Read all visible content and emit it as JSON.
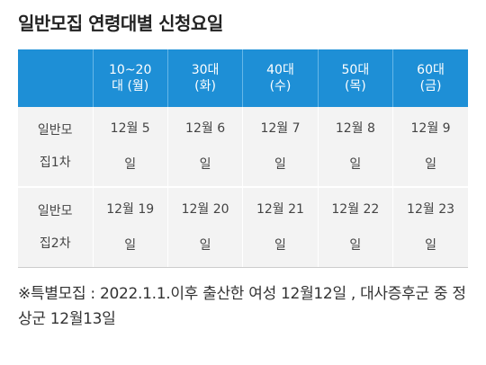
{
  "title": "일반모집 연령대별 신청요일",
  "table": {
    "headers": [
      {
        "line1": "",
        "line2": ""
      },
      {
        "line1": "10~20",
        "line2": "대 (월)"
      },
      {
        "line1": "30대",
        "line2": "(화)"
      },
      {
        "line1": "40대",
        "line2": "(수)"
      },
      {
        "line1": "50대",
        "line2": "(목)"
      },
      {
        "line1": "60대",
        "line2": "(금)"
      }
    ],
    "rows": [
      {
        "label": {
          "line1": "일반모",
          "line2": "집1차"
        },
        "cells": [
          {
            "line1": "12월 5",
            "line2": "일"
          },
          {
            "line1": "12월 6",
            "line2": "일"
          },
          {
            "line1": "12월 7",
            "line2": "일"
          },
          {
            "line1": "12월 8",
            "line2": "일"
          },
          {
            "line1": "12월 9",
            "line2": "일"
          }
        ]
      },
      {
        "label": {
          "line1": "일반모",
          "line2": "집2차"
        },
        "cells": [
          {
            "line1": "12월 19",
            "line2": "일"
          },
          {
            "line1": "12월 20",
            "line2": "일"
          },
          {
            "line1": "12월 21",
            "line2": "일"
          },
          {
            "line1": "12월 22",
            "line2": "일"
          },
          {
            "line1": "12월 23",
            "line2": "일"
          }
        ]
      }
    ]
  },
  "note": "※특별모집 : 2022.1.1.이후 출산한 여성 12월12일 , 대사증후군 중 정상군 12월13일",
  "colors": {
    "header_bg": "#1e8fd6",
    "cell_bg": "#f3f3f3"
  }
}
